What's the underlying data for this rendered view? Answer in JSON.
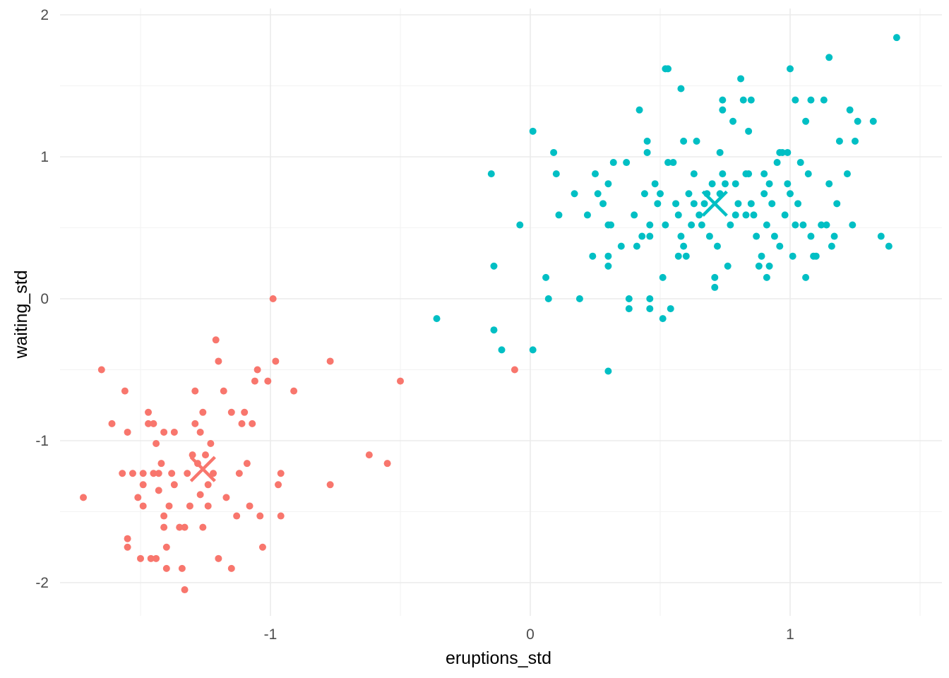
{
  "chart_data": {
    "type": "scatter",
    "title": "",
    "xlabel": "eruptions_std",
    "ylabel": "waiting_std",
    "xlim": [
      -1.5,
      1.5
    ],
    "ylim": [
      -2.3,
      2.0
    ],
    "x_ticks": [
      -1,
      0,
      1
    ],
    "x_tick_labels": [
      "-1",
      "0",
      "1"
    ],
    "y_ticks": [
      -2,
      -1,
      0,
      1,
      2
    ],
    "y_tick_labels": [
      "-2",
      "-1",
      "0",
      "1",
      "2"
    ],
    "grid": true,
    "legend": "none",
    "colors": {
      "cluster1": "#F8766D",
      "cluster2": "#00BFC4"
    },
    "series": [
      {
        "color": "#F8766D",
        "points": [
          [
            -1.65,
            -0.5
          ],
          [
            -1.61,
            -0.88
          ],
          [
            -1.57,
            -1.23
          ],
          [
            -1.56,
            -0.65
          ],
          [
            -1.55,
            -0.94
          ],
          [
            -1.55,
            -1.69
          ],
          [
            -1.55,
            -1.75
          ],
          [
            -1.53,
            -1.23
          ],
          [
            -1.51,
            -1.4
          ],
          [
            -1.5,
            -1.83
          ],
          [
            -1.49,
            -1.23
          ],
          [
            -1.49,
            -1.31
          ],
          [
            -1.49,
            -1.46
          ],
          [
            -1.47,
            -0.8
          ],
          [
            -1.47,
            -0.88
          ],
          [
            -1.46,
            -1.83
          ],
          [
            -1.45,
            -0.88
          ],
          [
            -1.45,
            -1.23
          ],
          [
            -1.44,
            -1.83
          ],
          [
            -1.44,
            -1.02
          ],
          [
            -1.43,
            -1.23
          ],
          [
            -1.43,
            -1.35
          ],
          [
            -1.42,
            -1.16
          ],
          [
            -1.41,
            -0.94
          ],
          [
            -1.41,
            -1.53
          ],
          [
            -1.41,
            -1.61
          ],
          [
            -1.4,
            -1.75
          ],
          [
            -1.4,
            -1.9
          ],
          [
            -1.39,
            -1.46
          ],
          [
            -1.38,
            -1.23
          ],
          [
            -1.37,
            -1.31
          ],
          [
            -1.37,
            -0.94
          ],
          [
            -1.35,
            -1.61
          ],
          [
            -1.34,
            -1.9
          ],
          [
            -1.33,
            -1.61
          ],
          [
            -1.32,
            -1.23
          ],
          [
            -1.31,
            -1.46
          ],
          [
            -1.3,
            -1.1
          ],
          [
            -1.29,
            -0.88
          ],
          [
            -1.29,
            -0.65
          ],
          [
            -1.28,
            -1.16
          ],
          [
            -1.27,
            -0.94
          ],
          [
            -1.27,
            -1.38
          ],
          [
            -1.26,
            -0.8
          ],
          [
            -1.26,
            -1.61
          ],
          [
            -1.25,
            -1.1
          ],
          [
            -1.24,
            -1.31
          ],
          [
            -1.24,
            -1.46
          ],
          [
            -1.23,
            -1.02
          ],
          [
            -1.22,
            -1.23
          ],
          [
            -1.21,
            -0.29
          ],
          [
            -1.2,
            -0.44
          ],
          [
            -1.2,
            -1.83
          ],
          [
            -1.18,
            -0.65
          ],
          [
            -1.17,
            -1.4
          ],
          [
            -1.15,
            -0.8
          ],
          [
            -1.15,
            -1.9
          ],
          [
            -1.13,
            -1.53
          ],
          [
            -1.12,
            -1.23
          ],
          [
            -1.11,
            -0.88
          ],
          [
            -1.1,
            -0.8
          ],
          [
            -1.09,
            -1.16
          ],
          [
            -1.08,
            -1.46
          ],
          [
            -1.07,
            -0.88
          ],
          [
            -1.06,
            -0.58
          ],
          [
            -1.05,
            -0.5
          ],
          [
            -1.04,
            -1.53
          ],
          [
            -1.03,
            -1.75
          ],
          [
            -1.01,
            -0.58
          ],
          [
            -0.99,
            0.0
          ],
          [
            -0.98,
            -0.44
          ],
          [
            -0.97,
            -1.31
          ],
          [
            -0.96,
            -1.23
          ],
          [
            -0.96,
            -1.53
          ],
          [
            -0.91,
            -0.65
          ],
          [
            -0.77,
            -0.44
          ],
          [
            -0.77,
            -1.31
          ],
          [
            -0.62,
            -1.1
          ],
          [
            -0.55,
            -1.16
          ],
          [
            -0.5,
            -0.58
          ],
          [
            -0.06,
            -0.5
          ],
          [
            -1.72,
            -1.4
          ],
          [
            -1.33,
            -2.05
          ]
        ]
      },
      {
        "color": "#00BFC4",
        "points": [
          [
            -0.36,
            -0.14
          ],
          [
            -0.15,
            0.88
          ],
          [
            -0.14,
            0.23
          ],
          [
            -0.14,
            -0.22
          ],
          [
            -0.11,
            -0.36
          ],
          [
            -0.04,
            0.52
          ],
          [
            0.01,
            1.18
          ],
          [
            0.01,
            -0.36
          ],
          [
            0.06,
            0.15
          ],
          [
            0.07,
            0.0
          ],
          [
            0.09,
            1.03
          ],
          [
            0.1,
            0.88
          ],
          [
            0.11,
            0.59
          ],
          [
            0.17,
            0.74
          ],
          [
            0.19,
            0.0
          ],
          [
            0.22,
            0.59
          ],
          [
            0.24,
            0.3
          ],
          [
            0.25,
            0.88
          ],
          [
            0.26,
            0.74
          ],
          [
            0.28,
            0.67
          ],
          [
            0.3,
            0.52
          ],
          [
            0.3,
            0.81
          ],
          [
            0.3,
            0.3
          ],
          [
            0.3,
            0.23
          ],
          [
            0.3,
            -0.51
          ],
          [
            0.31,
            0.52
          ],
          [
            0.32,
            0.96
          ],
          [
            0.35,
            0.37
          ],
          [
            0.37,
            0.96
          ],
          [
            0.38,
            0.0
          ],
          [
            0.38,
            -0.07
          ],
          [
            0.4,
            0.59
          ],
          [
            0.41,
            0.37
          ],
          [
            0.42,
            1.33
          ],
          [
            0.43,
            0.44
          ],
          [
            0.44,
            0.74
          ],
          [
            0.45,
            1.03
          ],
          [
            0.45,
            1.11
          ],
          [
            0.46,
            0.52
          ],
          [
            0.46,
            0.44
          ],
          [
            0.46,
            0.0
          ],
          [
            0.46,
            -0.07
          ],
          [
            0.48,
            0.81
          ],
          [
            0.49,
            0.67
          ],
          [
            0.5,
            0.74
          ],
          [
            0.51,
            0.15
          ],
          [
            0.51,
            -0.14
          ],
          [
            0.52,
            0.52
          ],
          [
            0.53,
            0.96
          ],
          [
            0.53,
            1.62
          ],
          [
            0.54,
            -0.07
          ],
          [
            0.55,
            0.96
          ],
          [
            0.56,
            0.67
          ],
          [
            0.57,
            0.3
          ],
          [
            0.57,
            0.59
          ],
          [
            0.58,
            0.44
          ],
          [
            0.58,
            1.48
          ],
          [
            0.59,
            1.11
          ],
          [
            0.59,
            0.37
          ],
          [
            0.6,
            0.3
          ],
          [
            0.61,
            0.74
          ],
          [
            0.62,
            0.52
          ],
          [
            0.63,
            0.88
          ],
          [
            0.64,
            1.11
          ],
          [
            0.65,
            0.59
          ],
          [
            0.66,
            0.52
          ],
          [
            0.67,
            0.67
          ],
          [
            0.68,
            0.74
          ],
          [
            0.69,
            0.44
          ],
          [
            0.7,
            0.81
          ],
          [
            0.71,
            0.15
          ],
          [
            0.71,
            0.08
          ],
          [
            0.72,
            0.37
          ],
          [
            0.73,
            0.74
          ],
          [
            0.74,
            0.88
          ],
          [
            0.74,
            1.4
          ],
          [
            0.74,
            1.33
          ],
          [
            0.75,
            0.81
          ],
          [
            0.76,
            0.23
          ],
          [
            0.77,
            0.52
          ],
          [
            0.78,
            1.25
          ],
          [
            0.79,
            0.81
          ],
          [
            0.8,
            0.67
          ],
          [
            0.81,
            1.55
          ],
          [
            0.82,
            1.4
          ],
          [
            0.83,
            0.59
          ],
          [
            0.84,
            1.18
          ],
          [
            0.84,
            0.88
          ],
          [
            0.85,
            1.4
          ],
          [
            0.86,
            0.59
          ],
          [
            0.87,
            0.44
          ],
          [
            0.88,
            0.23
          ],
          [
            0.89,
            0.3
          ],
          [
            0.9,
            0.88
          ],
          [
            0.9,
            0.74
          ],
          [
            0.91,
            0.52
          ],
          [
            0.91,
            0.15
          ],
          [
            0.92,
            0.23
          ],
          [
            0.93,
            0.67
          ],
          [
            0.94,
            0.44
          ],
          [
            0.95,
            0.96
          ],
          [
            0.96,
            1.03
          ],
          [
            0.96,
            0.37
          ],
          [
            0.98,
            0.59
          ],
          [
            0.99,
            0.81
          ],
          [
            1.0,
            0.74
          ],
          [
            1.01,
            0.3
          ],
          [
            1.02,
            0.52
          ],
          [
            1.03,
            0.67
          ],
          [
            1.04,
            0.96
          ],
          [
            1.05,
            0.52
          ],
          [
            1.06,
            0.15
          ],
          [
            1.07,
            0.88
          ],
          [
            1.08,
            0.44
          ],
          [
            1.09,
            0.3
          ],
          [
            1.1,
            0.3
          ],
          [
            1.12,
            0.52
          ],
          [
            1.13,
            1.4
          ],
          [
            1.15,
            0.81
          ],
          [
            1.16,
            0.37
          ],
          [
            1.17,
            0.44
          ],
          [
            1.18,
            0.67
          ],
          [
            1.19,
            1.11
          ],
          [
            1.22,
            0.88
          ],
          [
            1.23,
            1.33
          ],
          [
            1.24,
            0.52
          ],
          [
            1.25,
            1.11
          ],
          [
            1.26,
            1.25
          ],
          [
            1.32,
            1.25
          ],
          [
            1.35,
            0.44
          ],
          [
            1.38,
            0.37
          ],
          [
            1.41,
            1.84
          ],
          [
            1.15,
            1.7
          ],
          [
            1.0,
            1.62
          ],
          [
            0.52,
            1.62
          ],
          [
            0.73,
            1.03
          ],
          [
            0.99,
            1.03
          ],
          [
            1.02,
            1.4
          ],
          [
            1.06,
            1.25
          ],
          [
            0.97,
            1.03
          ],
          [
            1.14,
            0.52
          ],
          [
            1.08,
            1.4
          ],
          [
            0.85,
            0.67
          ],
          [
            0.63,
            0.67
          ],
          [
            0.79,
            0.59
          ],
          [
            0.92,
            0.81
          ],
          [
            0.83,
            0.88
          ]
        ]
      }
    ],
    "centroids": [
      {
        "color": "#F8766D",
        "x": -1.26,
        "y": -1.2
      },
      {
        "color": "#00BFC4",
        "x": 0.71,
        "y": 0.67
      }
    ]
  }
}
